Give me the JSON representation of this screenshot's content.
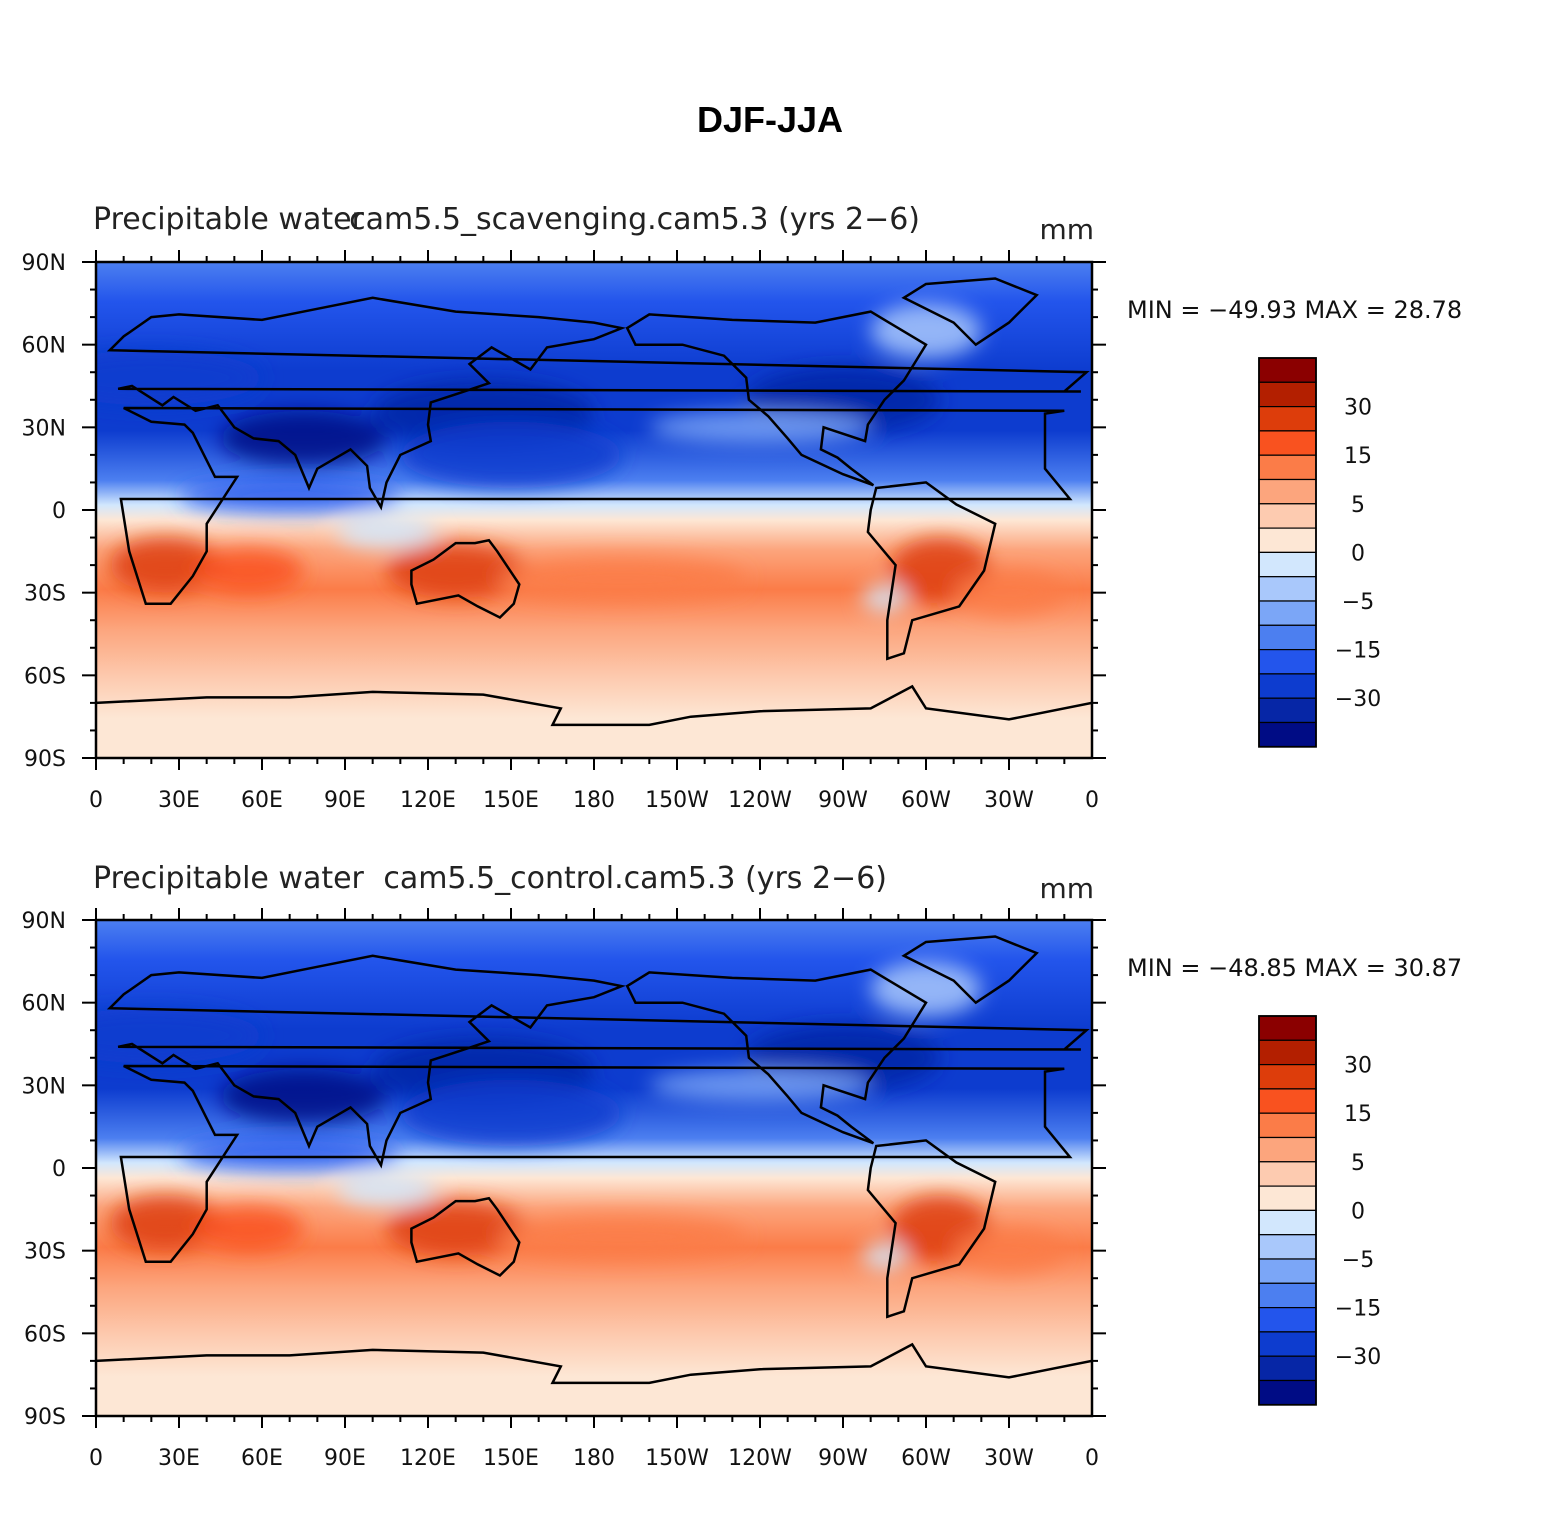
{
  "figure": {
    "title": "DJF-JJA",
    "units": "mm",
    "lon_ticks": [
      "0",
      "30E",
      "60E",
      "90E",
      "120E",
      "150E",
      "180",
      "150W",
      "120W",
      "90W",
      "60W",
      "30W",
      "0"
    ],
    "lat_ticks": [
      "90N",
      "60N",
      "30N",
      "0",
      "30S",
      "60S",
      "90S"
    ],
    "legend_levels": [
      "30",
      "15",
      "5",
      "0",
      "−5",
      "−15",
      "−30"
    ],
    "colors": [
      "#8b0000",
      "#b31f00",
      "#dd3d0b",
      "#f9521f",
      "#fb7c48",
      "#fca57d",
      "#fdcbb0",
      "#fde7d5",
      "#d2e7fd",
      "#a9c8fb",
      "#7ba6f7",
      "#4c7ff0",
      "#2355ec",
      "#0d3ccf",
      "#0626a6",
      "#000c85"
    ]
  },
  "panels": [
    {
      "run_name": "cam5.5_scavenging.cam5.3 (yrs 2−6)",
      "variable": "Precipitable water",
      "min_max": "MIN = −49.93  MAX =   28.78",
      "min": -49.93,
      "max": 28.78
    },
    {
      "run_name": "cam5.5_control.cam5.3 (yrs 2−6)",
      "variable": "Precipitable water",
      "min_max": "MIN = −48.85  MAX =   30.87",
      "min": -48.85,
      "max": 30.87
    }
  ]
}
